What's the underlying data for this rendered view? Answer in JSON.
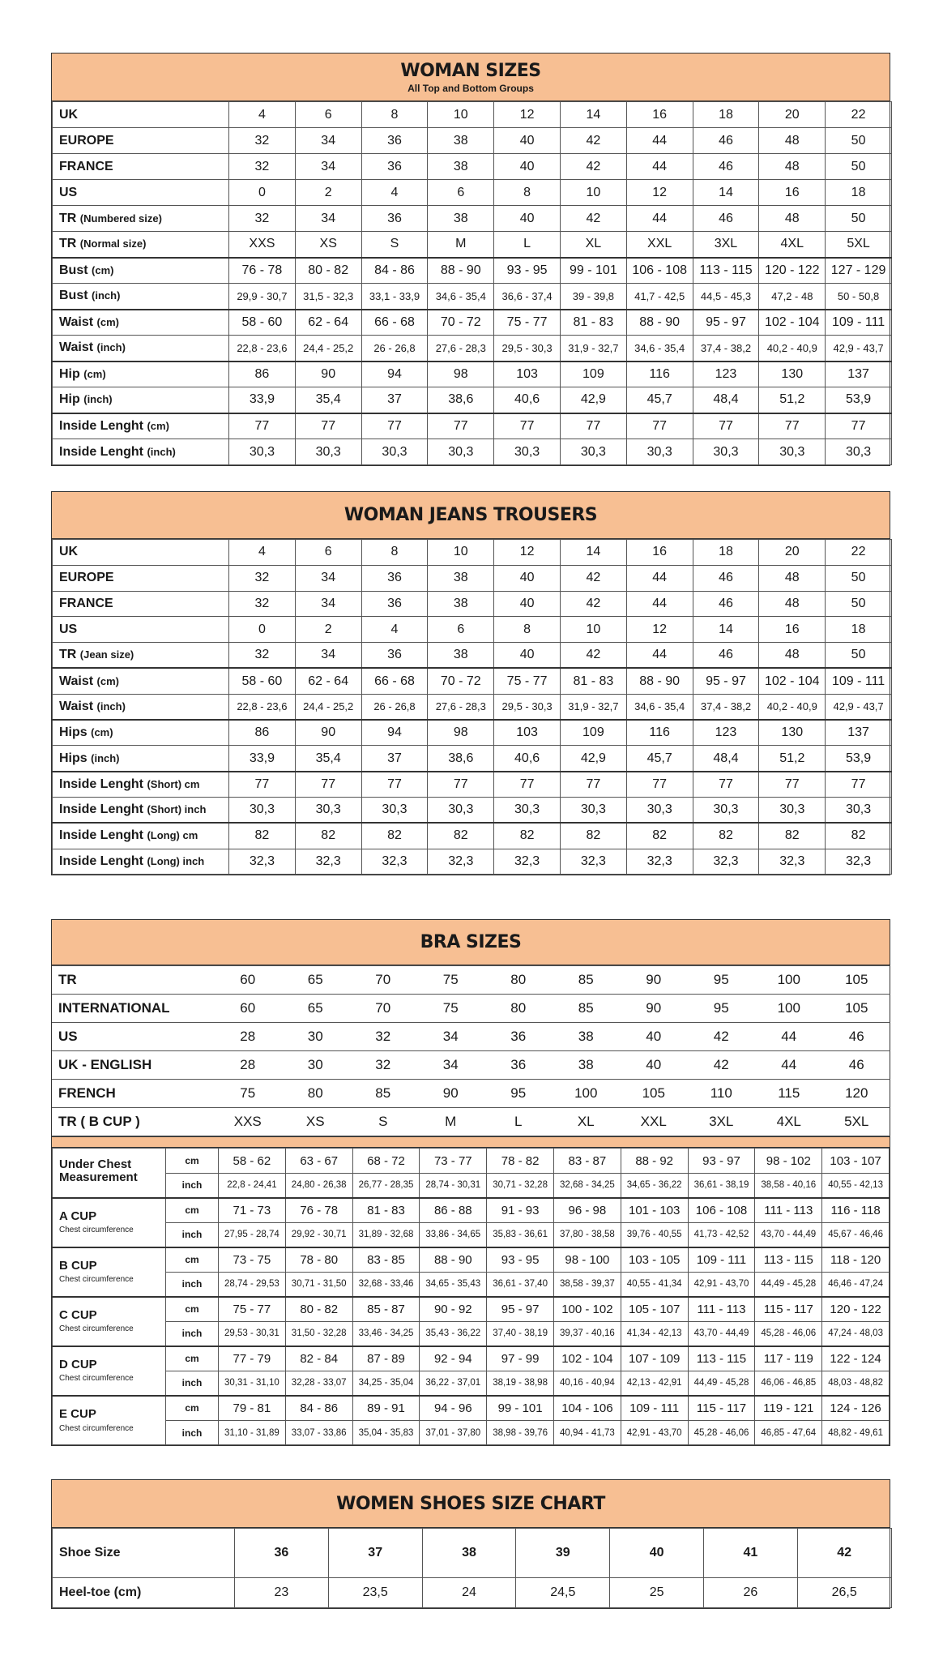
{
  "woman_sizes": {
    "title": "WOMAN SIZES",
    "subtitle": "All Top and Bottom Groups",
    "rows": [
      {
        "label": "UK",
        "unit": "",
        "values": [
          "4",
          "6",
          "8",
          "10",
          "12",
          "14",
          "16",
          "18",
          "20",
          "22"
        ]
      },
      {
        "label": "EUROPE",
        "unit": "",
        "values": [
          "32",
          "34",
          "36",
          "38",
          "40",
          "42",
          "44",
          "46",
          "48",
          "50"
        ]
      },
      {
        "label": "FRANCE",
        "unit": "",
        "values": [
          "32",
          "34",
          "36",
          "38",
          "40",
          "42",
          "44",
          "46",
          "48",
          "50"
        ]
      },
      {
        "label": "US",
        "unit": "",
        "values": [
          "0",
          "2",
          "4",
          "6",
          "8",
          "10",
          "12",
          "14",
          "16",
          "18"
        ]
      },
      {
        "label": "TR",
        "unit": "(Numbered size)",
        "values": [
          "32",
          "34",
          "36",
          "38",
          "40",
          "42",
          "44",
          "46",
          "48",
          "50"
        ]
      },
      {
        "label": "TR",
        "unit": "(Normal size)",
        "values": [
          "XXS",
          "XS",
          "S",
          "M",
          "L",
          "XL",
          "XXL",
          "3XL",
          "4XL",
          "5XL"
        ]
      },
      {
        "label": "Bust",
        "unit": "(cm)",
        "group": true,
        "values": [
          "76 - 78",
          "80 - 82",
          "84 - 86",
          "88 - 90",
          "93 - 95",
          "99 - 101",
          "106 - 108",
          "113 - 115",
          "120 - 122",
          "127 - 129"
        ]
      },
      {
        "label": "Bust",
        "unit": "(inch)",
        "small": true,
        "values": [
          "29,9 - 30,7",
          "31,5 - 32,3",
          "33,1 - 33,9",
          "34,6 - 35,4",
          "36,6 - 37,4",
          "39 - 39,8",
          "41,7 - 42,5",
          "44,5 - 45,3",
          "47,2 - 48",
          "50 - 50,8"
        ]
      },
      {
        "label": "Waist",
        "unit": "(cm)",
        "group": true,
        "values": [
          "58 - 60",
          "62 - 64",
          "66 - 68",
          "70 - 72",
          "75 - 77",
          "81 - 83",
          "88 - 90",
          "95 - 97",
          "102 - 104",
          "109 - 111"
        ]
      },
      {
        "label": "Waist",
        "unit": "(inch)",
        "small": true,
        "values": [
          "22,8 - 23,6",
          "24,4 - 25,2",
          "26 - 26,8",
          "27,6 - 28,3",
          "29,5 - 30,3",
          "31,9 - 32,7",
          "34,6 - 35,4",
          "37,4 - 38,2",
          "40,2 - 40,9",
          "42,9 - 43,7"
        ]
      },
      {
        "label": "Hip",
        "unit": "(cm)",
        "group": true,
        "values": [
          "86",
          "90",
          "94",
          "98",
          "103",
          "109",
          "116",
          "123",
          "130",
          "137"
        ]
      },
      {
        "label": "Hip",
        "unit": "(inch)",
        "values": [
          "33,9",
          "35,4",
          "37",
          "38,6",
          "40,6",
          "42,9",
          "45,7",
          "48,4",
          "51,2",
          "53,9"
        ]
      },
      {
        "label": "Inside Lenght",
        "unit": "(cm)",
        "group": true,
        "values": [
          "77",
          "77",
          "77",
          "77",
          "77",
          "77",
          "77",
          "77",
          "77",
          "77"
        ]
      },
      {
        "label": "Inside Lenght",
        "unit": "(inch)",
        "values": [
          "30,3",
          "30,3",
          "30,3",
          "30,3",
          "30,3",
          "30,3",
          "30,3",
          "30,3",
          "30,3",
          "30,3"
        ]
      }
    ]
  },
  "woman_jeans": {
    "title": "WOMAN JEANS TROUSERS",
    "rows": [
      {
        "label": "UK",
        "unit": "",
        "values": [
          "4",
          "6",
          "8",
          "10",
          "12",
          "14",
          "16",
          "18",
          "20",
          "22"
        ]
      },
      {
        "label": "EUROPE",
        "unit": "",
        "values": [
          "32",
          "34",
          "36",
          "38",
          "40",
          "42",
          "44",
          "46",
          "48",
          "50"
        ]
      },
      {
        "label": "FRANCE",
        "unit": "",
        "values": [
          "32",
          "34",
          "36",
          "38",
          "40",
          "42",
          "44",
          "46",
          "48",
          "50"
        ]
      },
      {
        "label": "US",
        "unit": "",
        "values": [
          "0",
          "2",
          "4",
          "6",
          "8",
          "10",
          "12",
          "14",
          "16",
          "18"
        ]
      },
      {
        "label": "TR",
        "unit": "(Jean size)",
        "values": [
          "32",
          "34",
          "36",
          "38",
          "40",
          "42",
          "44",
          "46",
          "48",
          "50"
        ]
      },
      {
        "label": "Waist",
        "unit": "(cm)",
        "group": true,
        "values": [
          "58 - 60",
          "62 - 64",
          "66 - 68",
          "70 - 72",
          "75 - 77",
          "81 - 83",
          "88 - 90",
          "95 - 97",
          "102 - 104",
          "109 - 111"
        ]
      },
      {
        "label": "Waist",
        "unit": "(inch)",
        "small": true,
        "values": [
          "22,8 - 23,6",
          "24,4 - 25,2",
          "26 - 26,8",
          "27,6 - 28,3",
          "29,5 - 30,3",
          "31,9 - 32,7",
          "34,6 - 35,4",
          "37,4 - 38,2",
          "40,2 - 40,9",
          "42,9 - 43,7"
        ]
      },
      {
        "label": "Hips",
        "unit": "(cm)",
        "group": true,
        "values": [
          "86",
          "90",
          "94",
          "98",
          "103",
          "109",
          "116",
          "123",
          "130",
          "137"
        ]
      },
      {
        "label": "Hips",
        "unit": "(inch)",
        "values": [
          "33,9",
          "35,4",
          "37",
          "38,6",
          "40,6",
          "42,9",
          "45,7",
          "48,4",
          "51,2",
          "53,9"
        ]
      },
      {
        "label": "Inside Lenght",
        "unit": "(Short) cm",
        "group": true,
        "values": [
          "77",
          "77",
          "77",
          "77",
          "77",
          "77",
          "77",
          "77",
          "77",
          "77"
        ]
      },
      {
        "label": "Inside Lenght",
        "unit": "(Short) inch",
        "values": [
          "30,3",
          "30,3",
          "30,3",
          "30,3",
          "30,3",
          "30,3",
          "30,3",
          "30,3",
          "30,3",
          "30,3"
        ]
      },
      {
        "label": "Inside Lenght",
        "unit": "(Long) cm",
        "group": true,
        "values": [
          "82",
          "82",
          "82",
          "82",
          "82",
          "82",
          "82",
          "82",
          "82",
          "82"
        ]
      },
      {
        "label": "Inside Lenght",
        "unit": "(Long) inch",
        "values": [
          "32,3",
          "32,3",
          "32,3",
          "32,3",
          "32,3",
          "32,3",
          "32,3",
          "32,3",
          "32,3",
          "32,3"
        ]
      }
    ]
  },
  "bra_sizes": {
    "title": "BRA SIZES",
    "rows": [
      {
        "label": "TR",
        "values": [
          "60",
          "65",
          "70",
          "75",
          "80",
          "85",
          "90",
          "95",
          "100",
          "105"
        ]
      },
      {
        "label": "INTERNATIONAL",
        "values": [
          "60",
          "65",
          "70",
          "75",
          "80",
          "85",
          "90",
          "95",
          "100",
          "105"
        ]
      },
      {
        "label": "US",
        "values": [
          "28",
          "30",
          "32",
          "34",
          "36",
          "38",
          "40",
          "42",
          "44",
          "46"
        ]
      },
      {
        "label": "UK - ENGLISH",
        "values": [
          "28",
          "30",
          "32",
          "34",
          "36",
          "38",
          "40",
          "42",
          "44",
          "46"
        ]
      },
      {
        "label": "FRENCH",
        "values": [
          "75",
          "80",
          "85",
          "90",
          "95",
          "100",
          "105",
          "110",
          "115",
          "120"
        ]
      },
      {
        "label": "TR ( B CUP )",
        "values": [
          "XXS",
          "XS",
          "S",
          "M",
          "L",
          "XL",
          "XXL",
          "3XL",
          "4XL",
          "5XL"
        ]
      }
    ],
    "cups": [
      {
        "label": "Under Chest Measurement",
        "sub": "",
        "cm_unit": "cm",
        "inch_unit": "inch",
        "cm": [
          "58 - 62",
          "63 - 67",
          "68 - 72",
          "73 - 77",
          "78 - 82",
          "83 - 87",
          "88 - 92",
          "93 - 97",
          "98 - 102",
          "103 - 107"
        ],
        "inch": [
          "22,8 - 24,41",
          "24,80 - 26,38",
          "26,77 - 28,35",
          "28,74 - 30,31",
          "30,71 - 32,28",
          "32,68 - 34,25",
          "34,65 - 36,22",
          "36,61 - 38,19",
          "38,58 - 40,16",
          "40,55 - 42,13"
        ]
      },
      {
        "label": "A CUP",
        "sub": "Chest circumference",
        "cm_unit": "cm",
        "inch_unit": "inch",
        "cm": [
          "71 - 73",
          "76 - 78",
          "81 - 83",
          "86 - 88",
          "91 - 93",
          "96 - 98",
          "101 - 103",
          "106 - 108",
          "111 - 113",
          "116 - 118"
        ],
        "inch": [
          "27,95 - 28,74",
          "29,92 - 30,71",
          "31,89 - 32,68",
          "33,86 - 34,65",
          "35,83 - 36,61",
          "37,80 - 38,58",
          "39,76 - 40,55",
          "41,73 - 42,52",
          "43,70 - 44,49",
          "45,67 - 46,46"
        ]
      },
      {
        "label": "B CUP",
        "sub": "Chest circumference",
        "cm_unit": "cm",
        "inch_unit": "inch",
        "cm": [
          "73 - 75",
          "78 - 80",
          "83 - 85",
          "88 - 90",
          "93 - 95",
          "98 - 100",
          "103 - 105",
          "109 - 111",
          "113 - 115",
          "118 - 120"
        ],
        "inch": [
          "28,74 - 29,53",
          "30,71 - 31,50",
          "32,68 - 33,46",
          "34,65 - 35,43",
          "36,61 - 37,40",
          "38,58 - 39,37",
          "40,55 - 41,34",
          "42,91 - 43,70",
          "44,49 - 45,28",
          "46,46 - 47,24"
        ]
      },
      {
        "label": "C CUP",
        "sub": "Chest circumference",
        "cm_unit": "cm",
        "inch_unit": "inch",
        "cm": [
          "75 - 77",
          "80 - 82",
          "85 - 87",
          "90 - 92",
          "95 - 97",
          "100 - 102",
          "105 - 107",
          "111 - 113",
          "115 - 117",
          "120 - 122"
        ],
        "inch": [
          "29,53 - 30,31",
          "31,50 - 32,28",
          "33,46 - 34,25",
          "35,43 - 36,22",
          "37,40 - 38,19",
          "39,37 - 40,16",
          "41,34 - 42,13",
          "43,70 - 44,49",
          "45,28 - 46,06",
          "47,24 - 48,03"
        ]
      },
      {
        "label": "D CUP",
        "sub": "Chest circumference",
        "cm_unit": "cm",
        "inch_unit": "inch",
        "cm": [
          "77 - 79",
          "82 - 84",
          "87 - 89",
          "92 - 94",
          "97 - 99",
          "102 - 104",
          "107 - 109",
          "113 - 115",
          "117 - 119",
          "122 - 124"
        ],
        "inch": [
          "30,31 - 31,10",
          "32,28 - 33,07",
          "34,25 - 35,04",
          "36,22 - 37,01",
          "38,19 - 38,98",
          "40,16 - 40,94",
          "42,13 - 42,91",
          "44,49 - 45,28",
          "46,06 - 46,85",
          "48,03 - 48,82"
        ]
      },
      {
        "label": "E CUP",
        "sub": "Chest circumference",
        "cm_unit": "cm",
        "inch_unit": "inch",
        "cm": [
          "79 - 81",
          "84 - 86",
          "89 - 91",
          "94 - 96",
          "99 - 101",
          "104 - 106",
          "109 - 111",
          "115 - 117",
          "119 - 121",
          "124 - 126"
        ],
        "inch": [
          "31,10 - 31,89",
          "33,07 - 33,86",
          "35,04 - 35,83",
          "37,01 - 37,80",
          "38,98 - 39,76",
          "40,94 - 41,73",
          "42,91 - 43,70",
          "45,28 - 46,06",
          "46,85 - 47,64",
          "48,82 - 49,61"
        ]
      }
    ]
  },
  "shoes": {
    "title": "WOMEN SHOES SIZE CHART",
    "rows": [
      {
        "label": "Shoe Size",
        "bold": true,
        "values": [
          "36",
          "37",
          "38",
          "39",
          "40",
          "41",
          "42"
        ]
      },
      {
        "label": "Heel-toe (cm)",
        "values": [
          "23",
          "23,5",
          "24",
          "24,5",
          "25",
          "26",
          "26,5"
        ]
      }
    ]
  },
  "colors": {
    "header_bg": "#f7bf93",
    "border": "#333333"
  }
}
